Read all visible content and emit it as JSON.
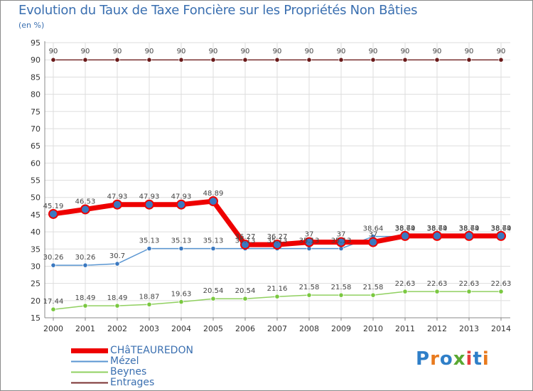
{
  "header": {
    "title": "Evolution du Taux de Taxe Foncière sur les Propriétés Non Bâties",
    "unit": "(en %)"
  },
  "chart_data": {
    "type": "line",
    "title": "Evolution du Taux de Taxe Foncière sur les Propriétés Non Bâties",
    "ylabel": "(en %)",
    "xlabel": "",
    "ylim": [
      15,
      95
    ],
    "yticks": [
      15,
      20,
      25,
      30,
      35,
      40,
      45,
      50,
      55,
      60,
      65,
      70,
      75,
      80,
      85,
      90,
      95
    ],
    "categories": [
      "2000",
      "2001",
      "2002",
      "2003",
      "2004",
      "2005",
      "2006",
      "2007",
      "2008",
      "2009",
      "2010",
      "2011",
      "2012",
      "2013",
      "2014"
    ],
    "series": [
      {
        "name": "CHâTEAUREDON",
        "color": "#ee0000",
        "marker_fill": "#3a78c0",
        "values": [
          45.19,
          46.53,
          47.93,
          47.93,
          47.93,
          48.89,
          36.27,
          36.27,
          37,
          37,
          37,
          38.79,
          38.79,
          38.79,
          38.79
        ],
        "labels": [
          "45.19",
          "46.53",
          "47.93",
          "47.93",
          "47.93",
          "48.89",
          "36.27",
          "36.27",
          "37",
          "37",
          "37",
          "38.79",
          "38.79",
          "38.79",
          "38.79"
        ]
      },
      {
        "name": "Mézel",
        "color": "#5a96d2",
        "marker_fill": "#3a78c0",
        "values": [
          30.26,
          30.26,
          30.7,
          35.13,
          35.13,
          35.13,
          35.13,
          35.13,
          35.13,
          35.13,
          38.64,
          38.64,
          38.64,
          38.64,
          38.64
        ],
        "labels": [
          "30.26",
          "30.26",
          "30.7",
          "35.13",
          "35.13",
          "35.13",
          "35.13",
          "35.13",
          "35.13",
          "35.13",
          "38.64",
          "38.64",
          "38.64",
          "38.64",
          "38.64"
        ]
      },
      {
        "name": "Beynes",
        "color": "#90d060",
        "marker_fill": "#7ac840",
        "values": [
          17.44,
          18.49,
          18.49,
          18.87,
          19.63,
          20.54,
          20.54,
          21.16,
          21.58,
          21.58,
          21.58,
          22.63,
          22.63,
          22.63,
          22.63
        ],
        "labels": [
          "17.44",
          "18.49",
          "18.49",
          "18.87",
          "19.63",
          "20.54",
          "20.54",
          "21.16",
          "21.58",
          "21.58",
          "21.58",
          "22.63",
          "22.63",
          "22.63",
          "22.63"
        ]
      },
      {
        "name": "Entrages",
        "color": "#7a3030",
        "marker_fill": "#6a1a1a",
        "values": [
          90,
          90,
          90,
          90,
          90,
          90,
          90,
          90,
          90,
          90,
          90,
          90,
          90,
          90,
          90
        ],
        "labels": [
          "90",
          "90",
          "90",
          "90",
          "90",
          "90",
          "90",
          "90",
          "90",
          "90",
          "90",
          "90",
          "90",
          "90",
          "90"
        ]
      }
    ],
    "grid": true,
    "legend": "bottom-left"
  },
  "legend": {
    "items": [
      "CHâTEAUREDON",
      "Mézel",
      "Beynes",
      "Entrages"
    ]
  },
  "logo": {
    "text": "Proxiti",
    "letters": [
      "P",
      "r",
      "o",
      "x",
      "i",
      "t",
      "i"
    ],
    "colors": [
      "#2f7fc8",
      "#e87a1e",
      "#2f7fc8",
      "#5aa832",
      "#e83c3c",
      "#2f7fc8",
      "#e87a1e"
    ]
  }
}
